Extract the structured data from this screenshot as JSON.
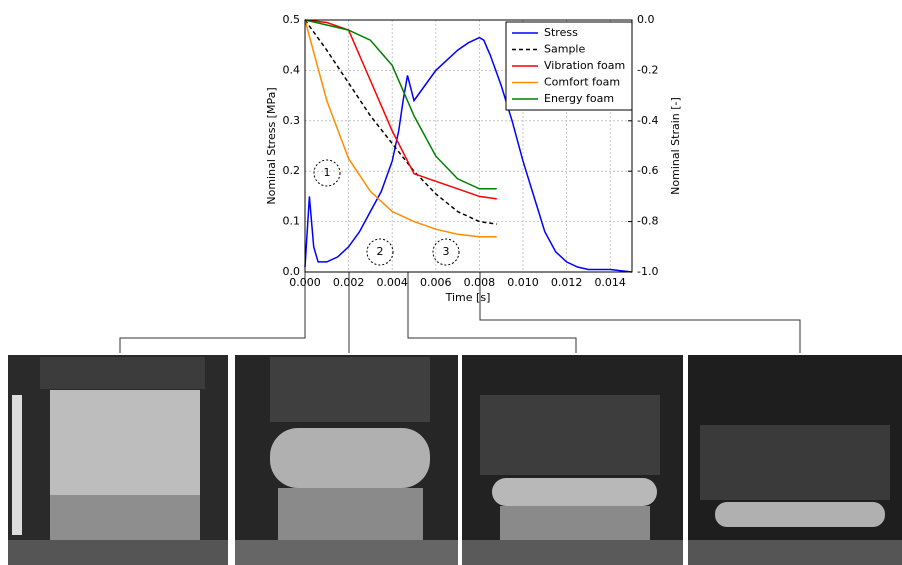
{
  "chart_data": {
    "type": "line",
    "xlabel": "Time [s]",
    "ylabel": "Nominal Stress [MPa]",
    "y2label": "Nominal Strain [-]",
    "xlim": [
      0,
      0.015
    ],
    "xticks": [
      {
        "value": 0,
        "label": "0.000"
      },
      {
        "value": 0.002,
        "label": "0.002"
      },
      {
        "value": 0.004,
        "label": "0.004"
      },
      {
        "value": 0.006,
        "label": "0.006"
      },
      {
        "value": 0.008,
        "label": "0.008"
      },
      {
        "value": 0.01,
        "label": "0.010"
      },
      {
        "value": 0.012,
        "label": "0.012"
      },
      {
        "value": 0.014,
        "label": "0.014"
      }
    ],
    "ylim": [
      0,
      0.5
    ],
    "yticks": [
      {
        "value": 0,
        "label": "0.0"
      },
      0.1,
      0.2,
      0.3,
      0.4,
      0.5
    ],
    "y2lim": [
      -1,
      0
    ],
    "y2ticks": [
      {
        "value": 0,
        "label": "0.0"
      },
      -0.2,
      -0.4,
      -0.6,
      -0.8,
      {
        "value": -1,
        "label": "-1.0"
      }
    ],
    "grid": true,
    "legend": "upper right",
    "annotations": [
      "1",
      "2",
      "3"
    ],
    "series": [
      {
        "name": "Stress",
        "color": "#0000ff",
        "dash": false,
        "x": [
          0,
          0.0002,
          0.0004,
          0.0006,
          0.001,
          0.0015,
          0.002,
          0.0025,
          0.003,
          0.0035,
          0.004,
          0.0043,
          0.0045,
          0.0047,
          0.005,
          0.0055,
          0.006,
          0.0065,
          0.007,
          0.0075,
          0.008,
          0.0082,
          0.0085,
          0.009,
          0.0095,
          0.01,
          0.0105,
          0.011,
          0.0115,
          0.012,
          0.0125,
          0.013,
          0.014,
          0.015
        ],
        "values": [
          0.01,
          0.15,
          0.05,
          0.02,
          0.02,
          0.03,
          0.05,
          0.08,
          0.12,
          0.16,
          0.22,
          0.28,
          0.34,
          0.39,
          0.34,
          0.37,
          0.4,
          0.42,
          0.44,
          0.455,
          0.465,
          0.46,
          0.43,
          0.37,
          0.3,
          0.22,
          0.15,
          0.08,
          0.04,
          0.02,
          0.01,
          0.005,
          0.005,
          0
        ]
      },
      {
        "name": "Sample",
        "color": "#000000",
        "dash": true,
        "axis": "y2",
        "x": [
          0,
          0.001,
          0.002,
          0.003,
          0.004,
          0.005,
          0.006,
          0.007,
          0.008,
          0.0088
        ],
        "values": [
          0,
          -0.12,
          -0.25,
          -0.38,
          -0.49,
          -0.6,
          -0.69,
          -0.76,
          -0.8,
          -0.81
        ]
      },
      {
        "name": "Vibration foam",
        "color": "#ff0000",
        "dash": false,
        "axis": "y2",
        "x": [
          0,
          0.001,
          0.002,
          0.003,
          0.004,
          0.005,
          0.006,
          0.007,
          0.008,
          0.0088
        ],
        "values": [
          0,
          -0.01,
          -0.04,
          -0.24,
          -0.44,
          -0.61,
          -0.64,
          -0.67,
          -0.7,
          -0.71
        ]
      },
      {
        "name": "Comfort foam",
        "color": "#ff8c00",
        "dash": false,
        "axis": "y2",
        "x": [
          0,
          0.001,
          0.002,
          0.003,
          0.004,
          0.005,
          0.006,
          0.007,
          0.008,
          0.0088
        ],
        "values": [
          0,
          -0.32,
          -0.55,
          -0.68,
          -0.76,
          -0.8,
          -0.83,
          -0.85,
          -0.86,
          -0.86
        ]
      },
      {
        "name": "Energy foam",
        "color": "#008000",
        "dash": false,
        "axis": "y2",
        "x": [
          0,
          0.001,
          0.002,
          0.003,
          0.004,
          0.005,
          0.006,
          0.007,
          0.008,
          0.0088
        ],
        "values": [
          0,
          -0.02,
          -0.04,
          -0.08,
          -0.18,
          -0.38,
          -0.54,
          -0.63,
          -0.67,
          -0.67
        ]
      }
    ]
  }
}
